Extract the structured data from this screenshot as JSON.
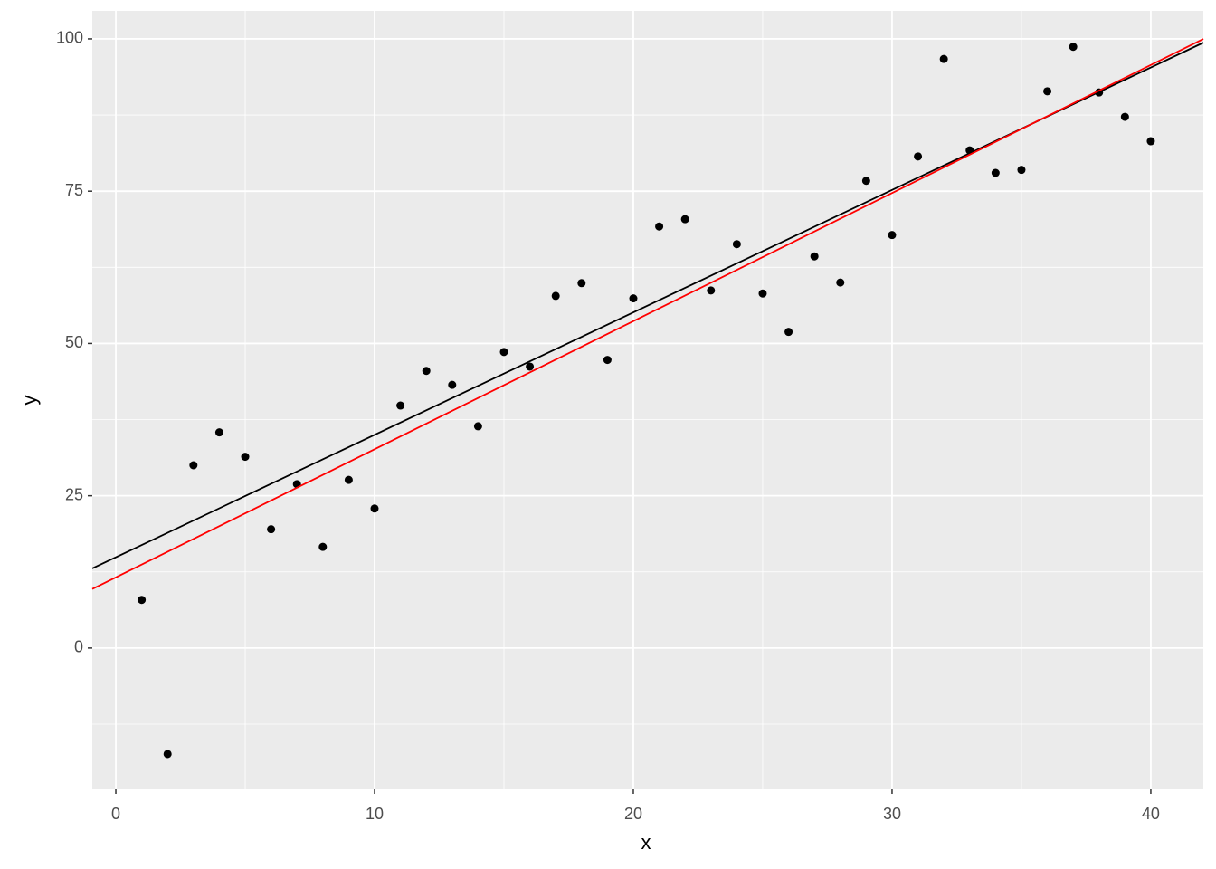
{
  "chart_data": {
    "type": "scatter",
    "x_label": "x",
    "y_label": "y",
    "x": [
      1,
      2,
      3,
      4,
      5,
      6,
      7,
      8,
      9,
      10,
      11,
      12,
      13,
      14,
      15,
      16,
      17,
      18,
      19,
      20,
      21,
      22,
      23,
      24,
      25,
      26,
      27,
      28,
      29,
      30,
      31,
      32,
      33,
      34,
      35,
      36,
      37,
      38,
      39,
      40
    ],
    "series": [
      {
        "color": "#000000",
        "values": [
          7.9,
          -17.4,
          30.0,
          35.4,
          31.4,
          19.5,
          26.9,
          16.6,
          27.6,
          22.9,
          39.8,
          45.5,
          43.2,
          36.4,
          48.6,
          46.2,
          57.8,
          59.9,
          47.3,
          57.4,
          69.2,
          70.4,
          58.7,
          66.3,
          58.2,
          51.9,
          64.3,
          60.0,
          76.7,
          67.8,
          80.7,
          96.7,
          81.7,
          78.0,
          78.5,
          91.4,
          98.7,
          91.2,
          87.2,
          83.2
        ]
      }
    ],
    "lines": [
      {
        "intercept": 14.9,
        "slope": 2.01,
        "color": "#000000"
      },
      {
        "intercept": 11.6,
        "slope": 2.103,
        "color": "#ff0000"
      }
    ],
    "xlim": [
      -0.91,
      42.03
    ],
    "ylim": [
      -23.2,
      104.6
    ],
    "xticks": [
      0,
      10,
      20,
      30,
      40
    ],
    "yticks": [
      0,
      25,
      50,
      75,
      100
    ],
    "x_minor_ticks": [
      5,
      15,
      25,
      35
    ],
    "y_minor_ticks": [
      -12.5,
      12.5,
      37.5,
      62.5,
      87.5
    ],
    "grid": true
  }
}
